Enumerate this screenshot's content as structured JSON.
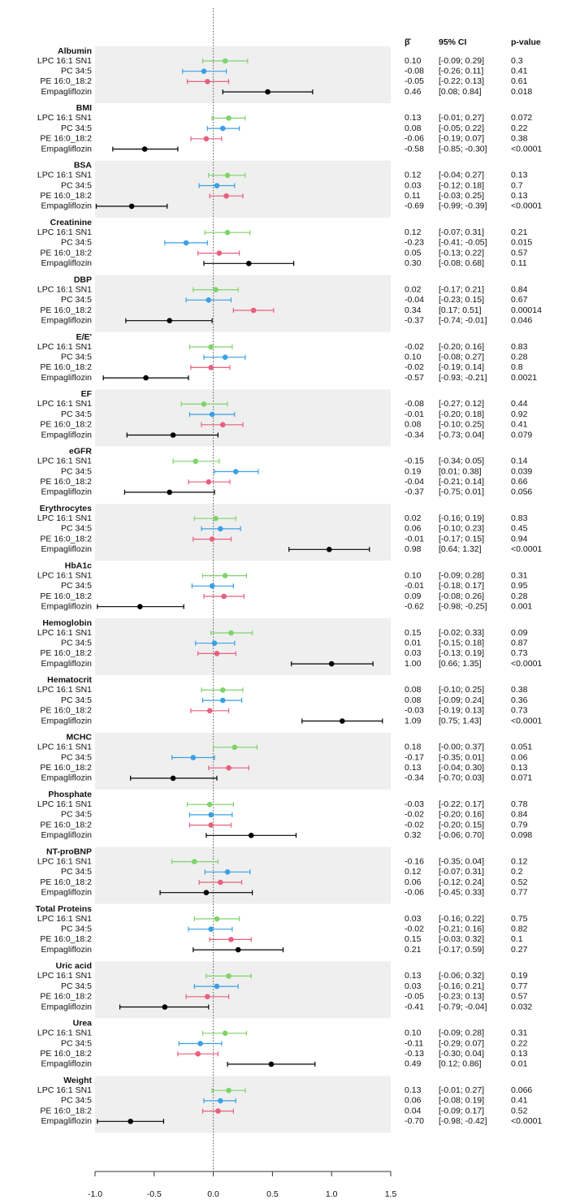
{
  "chart_data": {
    "type": "forest",
    "headers": {
      "estimate": "β̂",
      "ci": "95% CI",
      "p": "p-value"
    },
    "xlim": [
      -1,
      1.5
    ],
    "xticks": [
      {
        "value": -1,
        "label": "-1.0"
      },
      -0.5,
      {
        "value": 0,
        "label": "0.0"
      },
      0.5,
      {
        "value": 1,
        "label": "1.0"
      },
      1.5
    ],
    "series": [
      {
        "name": "LPC 16:1 SN1",
        "color": "#7fd36b"
      },
      {
        "name": "PC 34:5",
        "color": "#3aa0e6"
      },
      {
        "name": "PE 16:0_18:2",
        "color": "#e8607e"
      },
      {
        "name": "Empagliflozin",
        "color": "#000000"
      }
    ],
    "groups": [
      {
        "name": "Albumin",
        "values": [
          0.1,
          -0.08,
          -0.05,
          0.46
        ],
        "value_labels": [
          "0.10",
          "-0.08",
          "-0.05",
          "0.46"
        ],
        "lower": [
          -0.09,
          -0.26,
          -0.22,
          0.08
        ],
        "upper": [
          0.29,
          0.11,
          0.13,
          0.84
        ],
        "ci_labels": [
          "[-0.09; 0.29]",
          "[-0.26; 0.11]",
          "[-0.22; 0.13]",
          "[0.08; 0.84]"
        ],
        "p_values": [
          "0.3",
          "0.41",
          "0.61",
          "0.018"
        ]
      },
      {
        "name": "BMI",
        "values": [
          0.13,
          0.08,
          -0.06,
          -0.58
        ],
        "value_labels": [
          "0.13",
          "0.08",
          "-0.06",
          "-0.58"
        ],
        "lower": [
          -0.01,
          -0.05,
          -0.19,
          -0.85
        ],
        "upper": [
          0.27,
          0.22,
          0.07,
          -0.3
        ],
        "ci_labels": [
          "[-0.01; 0.27]",
          "[-0.05; 0.22]",
          "[-0.19; 0.07]",
          "[-0.85; -0.30]"
        ],
        "p_values": [
          "0.072",
          "0.22",
          "0.38",
          "<0.0001"
        ]
      },
      {
        "name": "BSA",
        "values": [
          0.12,
          0.03,
          0.11,
          -0.69
        ],
        "value_labels": [
          "0.12",
          "0.03",
          "0.11",
          "-0.69"
        ],
        "lower": [
          -0.04,
          -0.12,
          -0.03,
          -0.99
        ],
        "upper": [
          0.27,
          0.18,
          0.25,
          -0.39
        ],
        "ci_labels": [
          "[-0.04; 0.27]",
          "[-0.12; 0.18]",
          "[-0.03; 0.25]",
          "[-0.99; -0.39]"
        ],
        "p_values": [
          "0.13",
          "0.7",
          "0.13",
          "<0.0001"
        ]
      },
      {
        "name": "Creatinine",
        "values": [
          0.12,
          -0.23,
          0.05,
          0.3
        ],
        "value_labels": [
          "0.12",
          "-0.23",
          "0.05",
          "0.30"
        ],
        "lower": [
          -0.07,
          -0.41,
          -0.13,
          -0.08
        ],
        "upper": [
          0.31,
          -0.05,
          0.22,
          0.68
        ],
        "ci_labels": [
          "[-0.07; 0.31]",
          "[-0.41; -0.05]",
          "[-0.13; 0.22]",
          "[-0.08; 0.68]"
        ],
        "p_values": [
          "0.21",
          "0.015",
          "0.57",
          "0.11"
        ]
      },
      {
        "name": "DBP",
        "values": [
          0.02,
          -0.04,
          0.34,
          -0.37
        ],
        "value_labels": [
          "0.02",
          "-0.04",
          "0.34",
          "-0.37"
        ],
        "lower": [
          -0.17,
          -0.23,
          0.17,
          -0.74
        ],
        "upper": [
          0.21,
          0.15,
          0.51,
          -0.01
        ],
        "ci_labels": [
          "[-0.17; 0.21]",
          "[-0.23; 0.15]",
          "[0.17; 0.51]",
          "[-0.74; -0.01]"
        ],
        "p_values": [
          "0.84",
          "0.67",
          "0.00014",
          "0.046"
        ]
      },
      {
        "name": "E/E'",
        "values": [
          -0.02,
          0.1,
          -0.02,
          -0.57
        ],
        "value_labels": [
          "-0.02",
          "0.10",
          "-0.02",
          "-0.57"
        ],
        "lower": [
          -0.2,
          -0.08,
          -0.19,
          -0.93
        ],
        "upper": [
          0.16,
          0.27,
          0.14,
          -0.21
        ],
        "ci_labels": [
          "[-0.20; 0.16]",
          "[-0.08; 0.27]",
          "[-0.19; 0.14]",
          "[-0.93; -0.21]"
        ],
        "p_values": [
          "0.83",
          "0.28",
          "0.8",
          "0.0021"
        ]
      },
      {
        "name": "EF",
        "values": [
          -0.08,
          -0.01,
          0.08,
          -0.34
        ],
        "value_labels": [
          "-0.08",
          "-0.01",
          "0.08",
          "-0.34"
        ],
        "lower": [
          -0.27,
          -0.2,
          -0.1,
          -0.73
        ],
        "upper": [
          0.12,
          0.18,
          0.25,
          0.04
        ],
        "ci_labels": [
          "[-0.27; 0.12]",
          "[-0.20; 0.18]",
          "[-0.10; 0.25]",
          "[-0.73; 0.04]"
        ],
        "p_values": [
          "0.44",
          "0.92",
          "0.41",
          "0.079"
        ]
      },
      {
        "name": "eGFR",
        "values": [
          -0.15,
          0.19,
          -0.04,
          -0.37
        ],
        "value_labels": [
          "-0.15",
          "0.19",
          "-0.04",
          "-0.37"
        ],
        "lower": [
          -0.34,
          0.01,
          -0.21,
          -0.75
        ],
        "upper": [
          0.05,
          0.38,
          0.14,
          0.01
        ],
        "ci_labels": [
          "[-0.34; 0.05]",
          "[0.01; 0.38]",
          "[-0.21; 0.14]",
          "[-0.75; 0.01]"
        ],
        "p_values": [
          "0.14",
          "0.039",
          "0.66",
          "0.056"
        ]
      },
      {
        "name": "Erythrocytes",
        "values": [
          0.02,
          0.06,
          -0.01,
          0.98
        ],
        "value_labels": [
          "0.02",
          "0.06",
          "-0.01",
          "0.98"
        ],
        "lower": [
          -0.16,
          -0.1,
          -0.17,
          0.64
        ],
        "upper": [
          0.19,
          0.23,
          0.15,
          1.32
        ],
        "ci_labels": [
          "[-0.16; 0.19]",
          "[-0.10; 0.23]",
          "[-0.17; 0.15]",
          "[0.64; 1.32]"
        ],
        "p_values": [
          "0.83",
          "0.45",
          "0.94",
          "<0.0001"
        ]
      },
      {
        "name": "HbA1c",
        "values": [
          0.1,
          -0.01,
          0.09,
          -0.62
        ],
        "value_labels": [
          "0.10",
          "-0.01",
          "0.09",
          "-0.62"
        ],
        "lower": [
          -0.09,
          -0.18,
          -0.08,
          -0.98
        ],
        "upper": [
          0.28,
          0.17,
          0.26,
          -0.25
        ],
        "ci_labels": [
          "[-0.09; 0.28]",
          "[-0.18; 0.17]",
          "[-0.08; 0.26]",
          "[-0.98; -0.25]"
        ],
        "p_values": [
          "0.31",
          "0.95",
          "0.28",
          "0.001"
        ]
      },
      {
        "name": "Hemoglobin",
        "values": [
          0.15,
          0.01,
          0.03,
          1.0
        ],
        "value_labels": [
          "0.15",
          "0.01",
          "0.03",
          "1.00"
        ],
        "lower": [
          -0.02,
          -0.15,
          -0.13,
          0.66
        ],
        "upper": [
          0.33,
          0.18,
          0.19,
          1.35
        ],
        "ci_labels": [
          "[-0.02; 0.33]",
          "[-0.15; 0.18]",
          "[-0.13; 0.19]",
          "[0.66; 1.35]"
        ],
        "p_values": [
          "0.09",
          "0.87",
          "0.73",
          "<0.0001"
        ]
      },
      {
        "name": "Hematocrit",
        "values": [
          0.08,
          0.08,
          -0.03,
          1.09
        ],
        "value_labels": [
          "0.08",
          "0.08",
          "-0.03",
          "1.09"
        ],
        "lower": [
          -0.1,
          -0.09,
          -0.19,
          0.75
        ],
        "upper": [
          0.25,
          0.24,
          0.13,
          1.43
        ],
        "ci_labels": [
          "[-0.10; 0.25]",
          "[-0.09; 0.24]",
          "[-0.19; 0.13]",
          "[0.75; 1.43]"
        ],
        "p_values": [
          "0.38",
          "0.36",
          "0.73",
          "<0.0001"
        ]
      },
      {
        "name": "MCHC",
        "values": [
          0.18,
          -0.17,
          0.13,
          -0.34
        ],
        "value_labels": [
          "0.18",
          "-0.17",
          "0.13",
          "-0.34"
        ],
        "lower": [
          0,
          -0.35,
          -0.04,
          -0.7
        ],
        "upper": [
          0.37,
          0.01,
          0.3,
          0.03
        ],
        "ci_labels": [
          "[-0.00; 0.37]",
          "[-0.35; 0.01]",
          "[-0.04; 0.30]",
          "[-0.70; 0.03]"
        ],
        "p_values": [
          "0.051",
          "0.06",
          "0.13",
          "0.071"
        ]
      },
      {
        "name": "Phosphate",
        "values": [
          -0.03,
          -0.02,
          -0.02,
          0.32
        ],
        "value_labels": [
          "-0.03",
          "-0.02",
          "-0.02",
          "0.32"
        ],
        "lower": [
          -0.22,
          -0.2,
          -0.2,
          -0.06
        ],
        "upper": [
          0.17,
          0.16,
          0.15,
          0.7
        ],
        "ci_labels": [
          "[-0.22; 0.17]",
          "[-0.20; 0.16]",
          "[-0.20; 0.15]",
          "[-0.06; 0.70]"
        ],
        "p_values": [
          "0.78",
          "0.84",
          "0.79",
          "0.098"
        ]
      },
      {
        "name": "NT-proBNP",
        "values": [
          -0.16,
          0.12,
          0.06,
          -0.06
        ],
        "value_labels": [
          "-0.16",
          "0.12",
          "0.06",
          "-0.06"
        ],
        "lower": [
          -0.35,
          -0.07,
          -0.12,
          -0.45
        ],
        "upper": [
          0.04,
          0.31,
          0.24,
          0.33
        ],
        "ci_labels": [
          "[-0.35; 0.04]",
          "[-0.07; 0.31]",
          "[-0.12; 0.24]",
          "[-0.45; 0.33]"
        ],
        "p_values": [
          "0.12",
          "0.2",
          "0.52",
          "0.77"
        ]
      },
      {
        "name": "Total Proteins",
        "values": [
          0.03,
          -0.02,
          0.15,
          0.21
        ],
        "value_labels": [
          "0.03",
          "-0.02",
          "0.15",
          "0.21"
        ],
        "lower": [
          -0.16,
          -0.21,
          -0.03,
          -0.17
        ],
        "upper": [
          0.22,
          0.16,
          0.32,
          0.59
        ],
        "ci_labels": [
          "[-0.16; 0.22]",
          "[-0.21; 0.16]",
          "[-0.03; 0.32]",
          "[-0.17; 0.59]"
        ],
        "p_values": [
          "0.75",
          "0.82",
          "0.1",
          "0.27"
        ]
      },
      {
        "name": "Uric acid",
        "values": [
          0.13,
          0.03,
          -0.05,
          -0.41
        ],
        "value_labels": [
          "0.13",
          "0.03",
          "-0.05",
          "-0.41"
        ],
        "lower": [
          -0.06,
          -0.16,
          -0.23,
          -0.79
        ],
        "upper": [
          0.32,
          0.21,
          0.13,
          -0.04
        ],
        "ci_labels": [
          "[-0.06; 0.32]",
          "[-0.16; 0.21]",
          "[-0.23; 0.13]",
          "[-0.79; -0.04]"
        ],
        "p_values": [
          "0.19",
          "0.77",
          "0.57",
          "0.032"
        ]
      },
      {
        "name": "Urea",
        "values": [
          0.1,
          -0.11,
          -0.13,
          0.49
        ],
        "value_labels": [
          "0.10",
          "-0.11",
          "-0.13",
          "0.49"
        ],
        "lower": [
          -0.09,
          -0.29,
          -0.3,
          0.12
        ],
        "upper": [
          0.28,
          0.07,
          0.04,
          0.86
        ],
        "ci_labels": [
          "[-0.09; 0.28]",
          "[-0.29; 0.07]",
          "[-0.30; 0.04]",
          "[0.12; 0.86]"
        ],
        "p_values": [
          "0.31",
          "0.22",
          "0.13",
          "0.01"
        ]
      },
      {
        "name": "Weight",
        "values": [
          0.13,
          0.06,
          0.04,
          -0.7
        ],
        "value_labels": [
          "0.13",
          "0.06",
          "0.04",
          "-0.70"
        ],
        "lower": [
          -0.01,
          -0.08,
          -0.09,
          -0.98
        ],
        "upper": [
          0.27,
          0.19,
          0.17,
          -0.42
        ],
        "ci_labels": [
          "[-0.01; 0.27]",
          "[-0.08; 0.19]",
          "[-0.09; 0.17]",
          "[-0.98; -0.42]"
        ],
        "p_values": [
          "0.066",
          "0.41",
          "0.52",
          "<0.0001"
        ]
      }
    ]
  }
}
